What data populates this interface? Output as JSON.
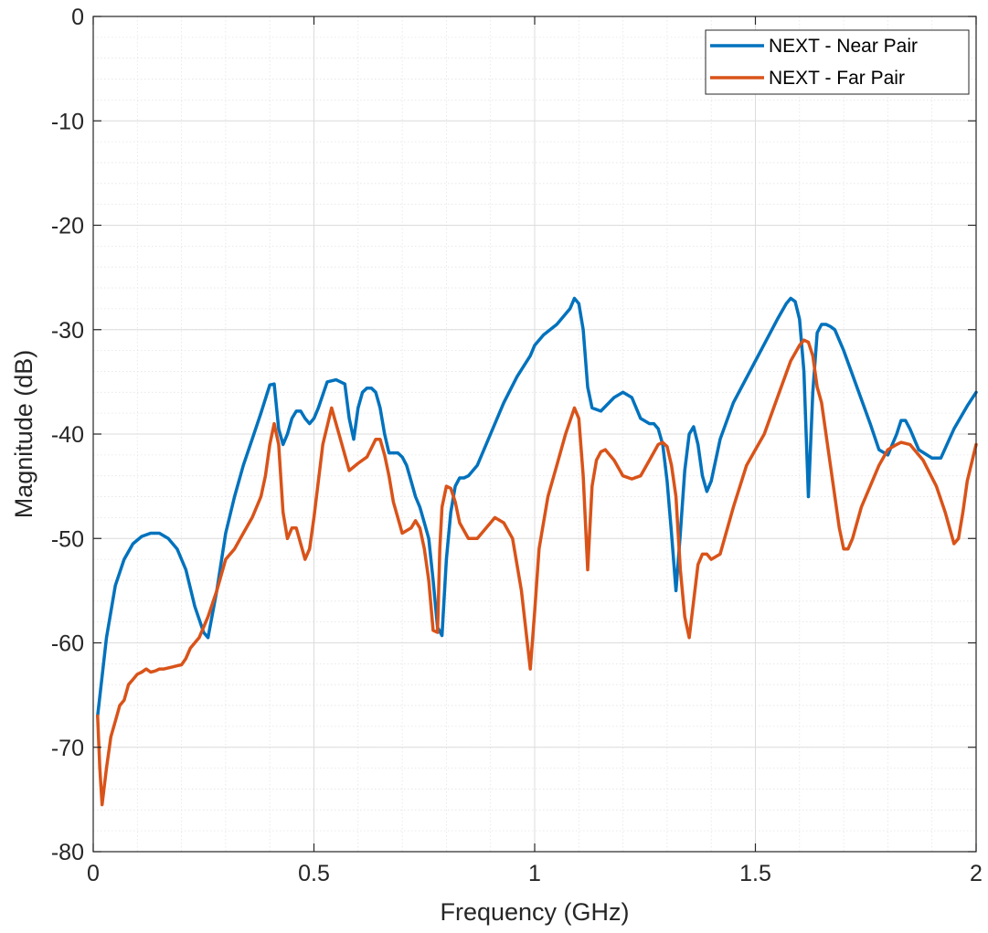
{
  "chart_data": {
    "type": "line",
    "title": "",
    "xlabel": "Frequency (GHz)",
    "ylabel": "Magnitude (dB)",
    "xlim": [
      0,
      2
    ],
    "ylim": [
      -80,
      0
    ],
    "xticks": [
      0,
      0.5,
      1,
      1.5,
      2
    ],
    "xtick_labels": [
      "0",
      "0.5",
      "1",
      "1.5",
      "2"
    ],
    "yticks": [
      -80,
      -70,
      -60,
      -50,
      -40,
      -30,
      -20,
      -10,
      0
    ],
    "ytick_labels": [
      "-80",
      "-70",
      "-60",
      "-50",
      "-40",
      "-30",
      "-20",
      "-10",
      "0"
    ],
    "grid": true,
    "minor_grid": true,
    "legend_position": "top-right",
    "series": [
      {
        "name": "NEXT - Near Pair",
        "color": "#0072BD",
        "x": [
          0.01,
          0.03,
          0.05,
          0.07,
          0.09,
          0.11,
          0.13,
          0.15,
          0.17,
          0.19,
          0.21,
          0.23,
          0.25,
          0.26,
          0.28,
          0.3,
          0.32,
          0.34,
          0.36,
          0.38,
          0.4,
          0.41,
          0.42,
          0.43,
          0.44,
          0.45,
          0.46,
          0.47,
          0.48,
          0.49,
          0.5,
          0.51,
          0.53,
          0.55,
          0.57,
          0.58,
          0.59,
          0.6,
          0.61,
          0.62,
          0.63,
          0.64,
          0.65,
          0.66,
          0.67,
          0.68,
          0.69,
          0.7,
          0.71,
          0.72,
          0.73,
          0.74,
          0.75,
          0.76,
          0.77,
          0.78,
          0.79,
          0.8,
          0.81,
          0.82,
          0.83,
          0.84,
          0.85,
          0.87,
          0.9,
          0.93,
          0.96,
          0.99,
          1.0,
          1.02,
          1.05,
          1.08,
          1.09,
          1.1,
          1.11,
          1.12,
          1.13,
          1.15,
          1.18,
          1.2,
          1.22,
          1.24,
          1.26,
          1.27,
          1.28,
          1.29,
          1.3,
          1.31,
          1.32,
          1.33,
          1.34,
          1.35,
          1.36,
          1.37,
          1.38,
          1.39,
          1.4,
          1.42,
          1.45,
          1.5,
          1.55,
          1.57,
          1.58,
          1.59,
          1.6,
          1.61,
          1.62,
          1.63,
          1.64,
          1.65,
          1.66,
          1.67,
          1.68,
          1.7,
          1.73,
          1.76,
          1.78,
          1.8,
          1.82,
          1.83,
          1.84,
          1.85,
          1.87,
          1.9,
          1.92,
          1.95,
          1.98,
          2.0
        ],
        "values": [
          -67,
          -59.5,
          -54.5,
          -52,
          -50.5,
          -49.8,
          -49.5,
          -49.5,
          -50,
          -51,
          -53,
          -56.5,
          -59,
          -59.5,
          -55,
          -49.5,
          -46,
          -43,
          -40.5,
          -38,
          -35.3,
          -35.2,
          -39.5,
          -41,
          -40,
          -38.5,
          -37.8,
          -37.8,
          -38.5,
          -39,
          -38.5,
          -37.5,
          -35,
          -34.8,
          -35.2,
          -38.5,
          -40.5,
          -37.5,
          -36,
          -35.6,
          -35.6,
          -36,
          -37.5,
          -40,
          -41.8,
          -41.8,
          -41.8,
          -42.2,
          -43,
          -44.5,
          -46,
          -47,
          -48.5,
          -50,
          -54,
          -58.5,
          -59.3,
          -52,
          -47.5,
          -45,
          -44.2,
          -44.2,
          -44,
          -43,
          -40,
          -37,
          -34.5,
          -32.5,
          -31.5,
          -30.5,
          -29.5,
          -28,
          -27,
          -27.5,
          -30,
          -35.5,
          -37.5,
          -37.8,
          -36.5,
          -36,
          -36.5,
          -38.5,
          -39,
          -39,
          -39.5,
          -41,
          -44.5,
          -49.5,
          -55,
          -49.5,
          -43.5,
          -40,
          -39.3,
          -41,
          -44,
          -45.5,
          -44.5,
          -40.5,
          -37,
          -33,
          -29,
          -27.5,
          -27,
          -27.3,
          -29,
          -34,
          -46,
          -36,
          -30.3,
          -29.5,
          -29.5,
          -29.7,
          -30,
          -32,
          -35.5,
          -39,
          -41.5,
          -42,
          -40,
          -38.7,
          -38.7,
          -39.5,
          -41.5,
          -42.3,
          -42.3,
          -39.5,
          -37.3,
          -36
        ]
      },
      {
        "name": "NEXT - Far Pair",
        "color": "#D95319",
        "x": [
          0.01,
          0.015,
          0.02,
          0.03,
          0.04,
          0.05,
          0.06,
          0.07,
          0.08,
          0.09,
          0.1,
          0.11,
          0.12,
          0.13,
          0.14,
          0.15,
          0.16,
          0.17,
          0.18,
          0.19,
          0.2,
          0.21,
          0.22,
          0.24,
          0.26,
          0.28,
          0.3,
          0.32,
          0.34,
          0.36,
          0.38,
          0.39,
          0.4,
          0.41,
          0.42,
          0.43,
          0.44,
          0.45,
          0.46,
          0.47,
          0.48,
          0.49,
          0.5,
          0.52,
          0.54,
          0.56,
          0.58,
          0.6,
          0.62,
          0.64,
          0.65,
          0.66,
          0.67,
          0.68,
          0.7,
          0.72,
          0.73,
          0.74,
          0.75,
          0.76,
          0.77,
          0.78,
          0.785,
          0.79,
          0.8,
          0.81,
          0.82,
          0.83,
          0.85,
          0.87,
          0.89,
          0.91,
          0.93,
          0.95,
          0.97,
          0.99,
          1.0,
          1.01,
          1.03,
          1.05,
          1.07,
          1.09,
          1.1,
          1.11,
          1.12,
          1.13,
          1.14,
          1.15,
          1.16,
          1.18,
          1.2,
          1.22,
          1.24,
          1.26,
          1.28,
          1.29,
          1.3,
          1.31,
          1.32,
          1.33,
          1.34,
          1.35,
          1.36,
          1.37,
          1.38,
          1.39,
          1.4,
          1.42,
          1.45,
          1.48,
          1.5,
          1.52,
          1.55,
          1.58,
          1.6,
          1.61,
          1.62,
          1.63,
          1.64,
          1.65,
          1.67,
          1.69,
          1.7,
          1.71,
          1.72,
          1.74,
          1.76,
          1.78,
          1.8,
          1.82,
          1.83,
          1.85,
          1.88,
          1.91,
          1.93,
          1.95,
          1.96,
          1.97,
          1.98,
          2.0
        ],
        "values": [
          -67,
          -72,
          -75.5,
          -72,
          -69,
          -67.5,
          -66,
          -65.5,
          -64,
          -63.5,
          -63,
          -62.8,
          -62.5,
          -62.8,
          -62.7,
          -62.5,
          -62.5,
          -62.4,
          -62.3,
          -62.2,
          -62.1,
          -61.5,
          -60.5,
          -59.5,
          -57.5,
          -55,
          -52,
          -51,
          -49.5,
          -48,
          -46,
          -44,
          -41,
          -39,
          -41,
          -47.5,
          -50,
          -49,
          -49,
          -50.5,
          -52,
          -51,
          -48,
          -41,
          -37.5,
          -40.5,
          -43.5,
          -42.8,
          -42.2,
          -40.5,
          -40.5,
          -42,
          -44,
          -46.5,
          -49.5,
          -49,
          -48.3,
          -49,
          -51,
          -54,
          -58.8,
          -59,
          -51,
          -47,
          -45,
          -45.2,
          -46.5,
          -48.5,
          -50,
          -50,
          -49,
          -48,
          -48.5,
          -50,
          -55,
          -62.5,
          -57,
          -51,
          -46,
          -43,
          -40,
          -37.5,
          -38.5,
          -44,
          -53,
          -45,
          -42.5,
          -41.7,
          -41.5,
          -42.5,
          -44,
          -44.3,
          -44,
          -42.5,
          -41,
          -40.8,
          -41.2,
          -43,
          -46,
          -53,
          -57.5,
          -59.5,
          -56,
          -52.5,
          -51.5,
          -51.5,
          -52,
          -51.5,
          -47,
          -43,
          -41.5,
          -40,
          -36.5,
          -33,
          -31.5,
          -31,
          -31.2,
          -32.5,
          -35.5,
          -37,
          -43,
          -49,
          -51,
          -51,
          -50,
          -47,
          -45,
          -43,
          -41.5,
          -41,
          -40.8,
          -41,
          -42.5,
          -45,
          -47.5,
          -50.5,
          -50,
          -47.5,
          -44.5,
          -41
        ]
      }
    ]
  }
}
